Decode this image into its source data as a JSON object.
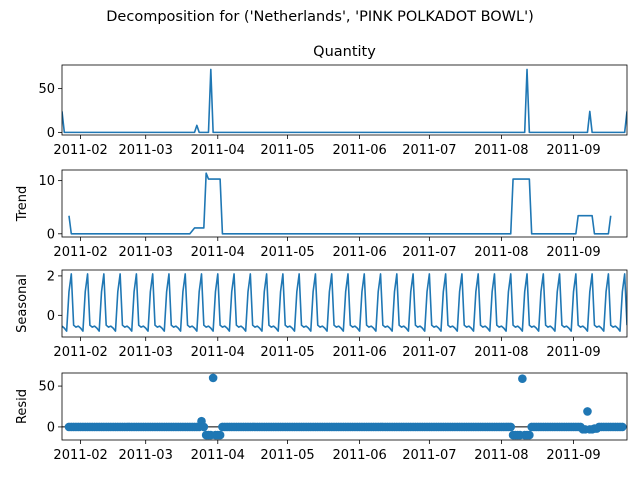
{
  "figure": {
    "suptitle": "Decomposition for ('Netherlands', 'PINK POLKADOT BOWL')",
    "series_color": "#1f77b4"
  },
  "chart_data": [
    {
      "type": "line",
      "title": "Quantity",
      "ylabel": "",
      "ylim": [
        -3,
        77
      ],
      "yticks": [
        0,
        50
      ],
      "xlim": [
        "2011-01-24",
        "2011-09-24"
      ],
      "xticks": [
        "2011-02-01",
        "2011-03-01",
        "2011-04-01",
        "2011-05-01",
        "2011-06-01",
        "2011-07-01",
        "2011-08-01",
        "2011-09-01"
      ],
      "xtick_labels": [
        "2011-02",
        "2011-03",
        "2011-04",
        "2011-05",
        "2011-06",
        "2011-07",
        "2011-08",
        "2011-09"
      ],
      "grid": false,
      "points": [
        [
          "2011-01-24",
          24
        ],
        [
          "2011-01-25",
          0
        ],
        [
          "2011-03-22",
          0
        ],
        [
          "2011-03-23",
          8
        ],
        [
          "2011-03-24",
          0
        ],
        [
          "2011-03-28",
          0
        ],
        [
          "2011-03-29",
          72
        ],
        [
          "2011-03-30",
          0
        ],
        [
          "2011-08-11",
          0
        ],
        [
          "2011-08-12",
          72
        ],
        [
          "2011-08-13",
          0
        ],
        [
          "2011-09-07",
          0
        ],
        [
          "2011-09-08",
          24
        ],
        [
          "2011-09-09",
          0
        ],
        [
          "2011-09-23",
          0
        ],
        [
          "2011-09-24",
          24
        ]
      ]
    },
    {
      "type": "line",
      "title": "",
      "ylabel": "Trend",
      "ylim": [
        -0.6,
        12
      ],
      "yticks": [
        0,
        10
      ],
      "xlim": [
        "2011-01-24",
        "2011-09-24"
      ],
      "xticks": [
        "2011-02-01",
        "2011-03-01",
        "2011-04-01",
        "2011-05-01",
        "2011-06-01",
        "2011-07-01",
        "2011-08-01",
        "2011-09-01"
      ],
      "xtick_labels": [
        "2011-02",
        "2011-03",
        "2011-04",
        "2011-05",
        "2011-06",
        "2011-07",
        "2011-08",
        "2011-09"
      ],
      "grid": false,
      "points": [
        [
          "2011-01-27",
          3.4
        ],
        [
          "2011-01-28",
          0
        ],
        [
          "2011-03-20",
          0
        ],
        [
          "2011-03-22",
          1.1
        ],
        [
          "2011-03-26",
          1.1
        ],
        [
          "2011-03-27",
          11.4
        ],
        [
          "2011-03-28",
          10.3
        ],
        [
          "2011-04-02",
          10.3
        ],
        [
          "2011-04-03",
          0
        ],
        [
          "2011-08-05",
          0
        ],
        [
          "2011-08-06",
          10.3
        ],
        [
          "2011-08-13",
          10.3
        ],
        [
          "2011-08-14",
          0
        ],
        [
          "2011-09-02",
          0
        ],
        [
          "2011-09-03",
          3.4
        ],
        [
          "2011-09-09",
          3.4
        ],
        [
          "2011-09-10",
          0
        ],
        [
          "2011-09-16",
          0
        ],
        [
          "2011-09-17",
          3.4
        ]
      ]
    },
    {
      "type": "line",
      "title": "",
      "ylabel": "Seasonal",
      "ylim": [
        -1.1,
        2.3
      ],
      "yticks": [
        0,
        2
      ],
      "xlim": [
        "2011-01-24",
        "2011-09-24"
      ],
      "xticks": [
        "2011-02-01",
        "2011-03-01",
        "2011-04-01",
        "2011-05-01",
        "2011-06-01",
        "2011-07-01",
        "2011-08-01",
        "2011-09-01"
      ],
      "xtick_labels": [
        "2011-02",
        "2011-03",
        "2011-04",
        "2011-05",
        "2011-06",
        "2011-07",
        "2011-08",
        "2011-09"
      ],
      "grid": false,
      "period": 7,
      "pattern": [
        -0.55,
        -0.65,
        -0.8,
        1.2,
        2.1,
        -0.5,
        -0.6
      ],
      "start": "2011-01-24",
      "end": "2011-09-24"
    },
    {
      "type": "scatter",
      "title": "",
      "ylabel": "Resid",
      "ylim": [
        -16,
        66
      ],
      "yticks": [
        0,
        50
      ],
      "baseline": 0,
      "xlim": [
        "2011-01-24",
        "2011-09-24"
      ],
      "xticks": [
        "2011-02-01",
        "2011-03-01",
        "2011-04-01",
        "2011-05-01",
        "2011-06-01",
        "2011-07-01",
        "2011-08-01",
        "2011-09-01"
      ],
      "xtick_labels": [
        "2011-02",
        "2011-03",
        "2011-04",
        "2011-05",
        "2011-06",
        "2011-07",
        "2011-08",
        "2011-09"
      ],
      "grid": false,
      "start": "2011-01-27",
      "end": "2011-09-22",
      "default": 0,
      "overrides": [
        [
          "2011-03-25",
          7
        ],
        [
          "2011-03-27",
          -10
        ],
        [
          "2011-03-28",
          -10
        ],
        [
          "2011-03-29",
          -10
        ],
        [
          "2011-03-30",
          60
        ],
        [
          "2011-03-31",
          -10
        ],
        [
          "2011-04-01",
          -10
        ],
        [
          "2011-04-02",
          -10
        ],
        [
          "2011-08-06",
          -10
        ],
        [
          "2011-08-07",
          -10
        ],
        [
          "2011-08-08",
          -10
        ],
        [
          "2011-08-09",
          -10
        ],
        [
          "2011-08-10",
          59
        ],
        [
          "2011-08-11",
          -10
        ],
        [
          "2011-08-12",
          -10
        ],
        [
          "2011-08-13",
          -10
        ],
        [
          "2011-09-05",
          -3
        ],
        [
          "2011-09-06",
          -3
        ],
        [
          "2011-09-07",
          19
        ],
        [
          "2011-09-08",
          -3
        ],
        [
          "2011-09-09",
          -3
        ],
        [
          "2011-09-10",
          -2
        ],
        [
          "2011-09-11",
          -2
        ]
      ]
    }
  ]
}
